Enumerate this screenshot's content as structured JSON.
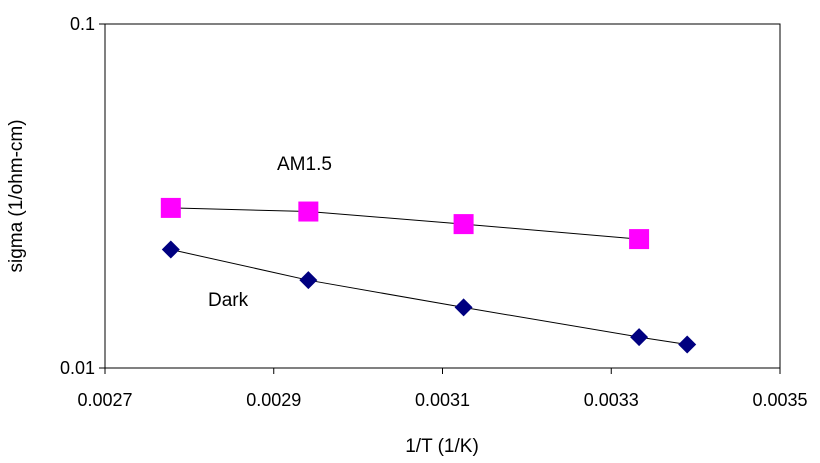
{
  "chart_data": {
    "type": "scatter",
    "title": "",
    "xlabel": "1/T (1/K)",
    "ylabel": "sigma (1/ohm-cm)",
    "xlim": [
      0.0027,
      0.0035
    ],
    "ylim": [
      0.01,
      0.1
    ],
    "yscale": "log",
    "grid": false,
    "legend": "none",
    "x_ticks": [
      "0.0027",
      "0.0029",
      "0.0031",
      "0.0033",
      "0.0035"
    ],
    "y_ticks": [
      "0.1",
      "0.01"
    ],
    "series": [
      {
        "name": "AM1.5",
        "marker": "square",
        "color": "#ff00ff",
        "x": [
          0.002778,
          0.002941,
          0.003125,
          0.003333
        ],
        "y": [
          0.0292,
          0.0285,
          0.0262,
          0.0237
        ]
      },
      {
        "name": "Dark",
        "marker": "diamond",
        "color": "#000080",
        "x": [
          0.002778,
          0.002941,
          0.003125,
          0.003333,
          0.00339
        ],
        "y": [
          0.0221,
          0.018,
          0.015,
          0.0123,
          0.0117
        ]
      }
    ]
  }
}
